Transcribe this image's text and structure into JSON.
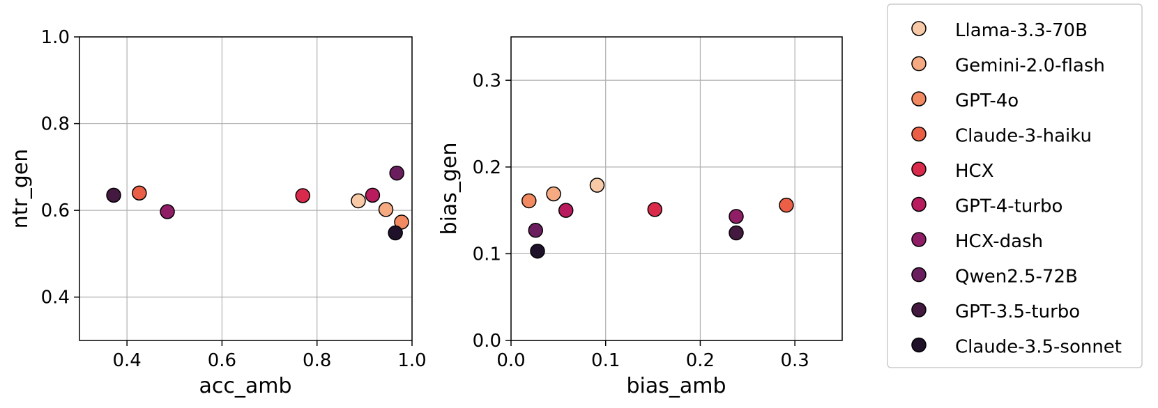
{
  "models": [
    {
      "name": "Llama-3.3-70B",
      "color": "#f8c9a6"
    },
    {
      "name": "Gemini-2.0-flash",
      "color": "#f5aa82"
    },
    {
      "name": "GPT-4o",
      "color": "#f28a61"
    },
    {
      "name": "Claude-3-haiku",
      "color": "#ea5f45"
    },
    {
      "name": "HCX",
      "color": "#d92a4b"
    },
    {
      "name": "GPT-4-turbo",
      "color": "#b91c5e"
    },
    {
      "name": "HCX-dash",
      "color": "#8f1e67"
    },
    {
      "name": "Qwen2.5-72B",
      "color": "#6b1e5e"
    },
    {
      "name": "GPT-3.5-turbo",
      "color": "#43193f"
    },
    {
      "name": "Claude-3.5-sonnet",
      "color": "#1f1129"
    }
  ],
  "chart_data": [
    {
      "type": "scatter",
      "xlabel": "acc_amb",
      "ylabel": "ntr_gen",
      "xlim": [
        0.3,
        1.0
      ],
      "ylim": [
        0.3,
        1.0
      ],
      "xticks": [
        0.4,
        0.6,
        0.8,
        1.0
      ],
      "yticks": [
        0.4,
        0.6,
        0.8,
        1.0
      ],
      "xtick_labels": [
        "0.4",
        "0.6",
        "0.8",
        "1.0"
      ],
      "ytick_labels": [
        "0.4",
        "0.6",
        "0.8",
        "1.0"
      ],
      "grid": true,
      "points": [
        {
          "model": "Llama-3.3-70B",
          "x": 0.887,
          "y": 0.622
        },
        {
          "model": "Gemini-2.0-flash",
          "x": 0.945,
          "y": 0.602
        },
        {
          "model": "GPT-4o",
          "x": 0.978,
          "y": 0.573
        },
        {
          "model": "Claude-3-haiku",
          "x": 0.426,
          "y": 0.64
        },
        {
          "model": "HCX",
          "x": 0.77,
          "y": 0.634
        },
        {
          "model": "GPT-4-turbo",
          "x": 0.917,
          "y": 0.635
        },
        {
          "model": "HCX-dash",
          "x": 0.485,
          "y": 0.597
        },
        {
          "model": "Qwen2.5-72B",
          "x": 0.968,
          "y": 0.686
        },
        {
          "model": "GPT-3.5-turbo",
          "x": 0.372,
          "y": 0.635
        },
        {
          "model": "Claude-3.5-sonnet",
          "x": 0.965,
          "y": 0.548
        }
      ]
    },
    {
      "type": "scatter",
      "xlabel": "bias_amb",
      "ylabel": "bias_gen",
      "xlim": [
        0.0,
        0.35
      ],
      "ylim": [
        0.0,
        0.35
      ],
      "xticks": [
        0.0,
        0.1,
        0.2,
        0.3
      ],
      "yticks": [
        0.0,
        0.1,
        0.2,
        0.3
      ],
      "xtick_labels": [
        "0.0",
        "0.1",
        "0.2",
        "0.3"
      ],
      "ytick_labels": [
        "0.0",
        "0.1",
        "0.2",
        "0.3"
      ],
      "grid": true,
      "points": [
        {
          "model": "Llama-3.3-70B",
          "x": 0.091,
          "y": 0.179
        },
        {
          "model": "Gemini-2.0-flash",
          "x": 0.045,
          "y": 0.169
        },
        {
          "model": "GPT-4o",
          "x": 0.019,
          "y": 0.161
        },
        {
          "model": "Claude-3-haiku",
          "x": 0.291,
          "y": 0.156
        },
        {
          "model": "HCX",
          "x": 0.152,
          "y": 0.151
        },
        {
          "model": "GPT-4-turbo",
          "x": 0.058,
          "y": 0.15
        },
        {
          "model": "HCX-dash",
          "x": 0.238,
          "y": 0.143
        },
        {
          "model": "Qwen2.5-72B",
          "x": 0.026,
          "y": 0.127
        },
        {
          "model": "GPT-3.5-turbo",
          "x": 0.238,
          "y": 0.124
        },
        {
          "model": "Claude-3.5-sonnet",
          "x": 0.028,
          "y": 0.103
        }
      ]
    }
  ],
  "legend": {
    "placement": "right",
    "entries": [
      "Llama-3.3-70B",
      "Gemini-2.0-flash",
      "GPT-4o",
      "Claude-3-haiku",
      "HCX",
      "GPT-4-turbo",
      "HCX-dash",
      "Qwen2.5-72B",
      "GPT-3.5-turbo",
      "Claude-3.5-sonnet"
    ]
  }
}
